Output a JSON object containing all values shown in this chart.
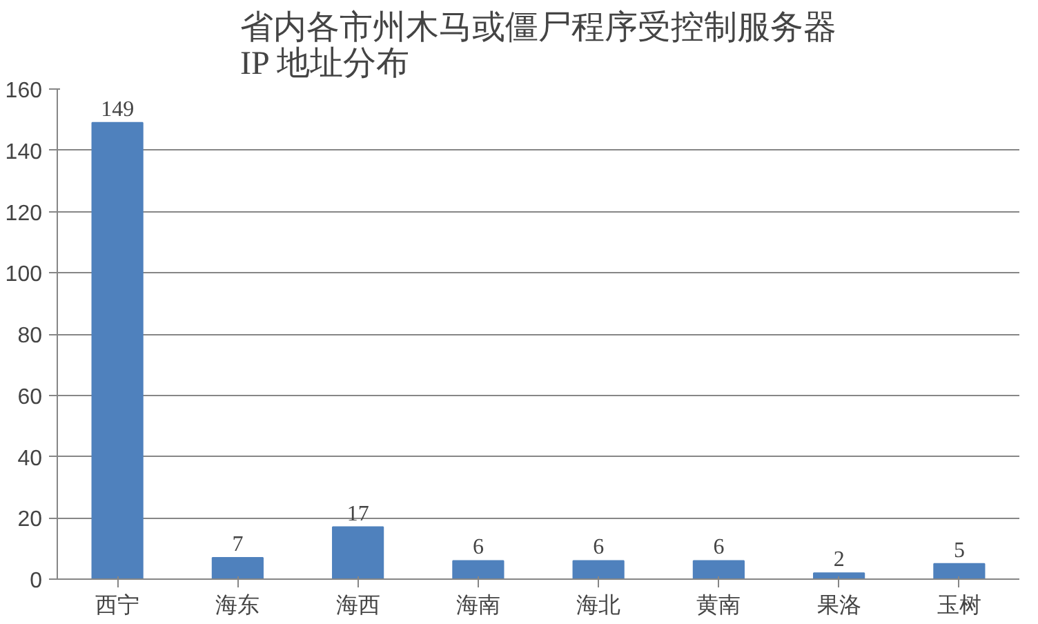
{
  "chart_data": {
    "type": "bar",
    "title": "省内各市州木马或僵尸程序受控制服务器\nIP 地址分布",
    "categories": [
      "西宁",
      "海东",
      "海西",
      "海南",
      "海北",
      "黄南",
      "果洛",
      "玉树"
    ],
    "values": [
      149,
      7,
      17,
      6,
      6,
      6,
      2,
      5
    ],
    "color": "#4f81bd",
    "ylim": [
      0,
      160
    ],
    "yticks": [
      0,
      20,
      40,
      60,
      80,
      100,
      120,
      140,
      160
    ],
    "grid": "y",
    "data_labels": true
  }
}
